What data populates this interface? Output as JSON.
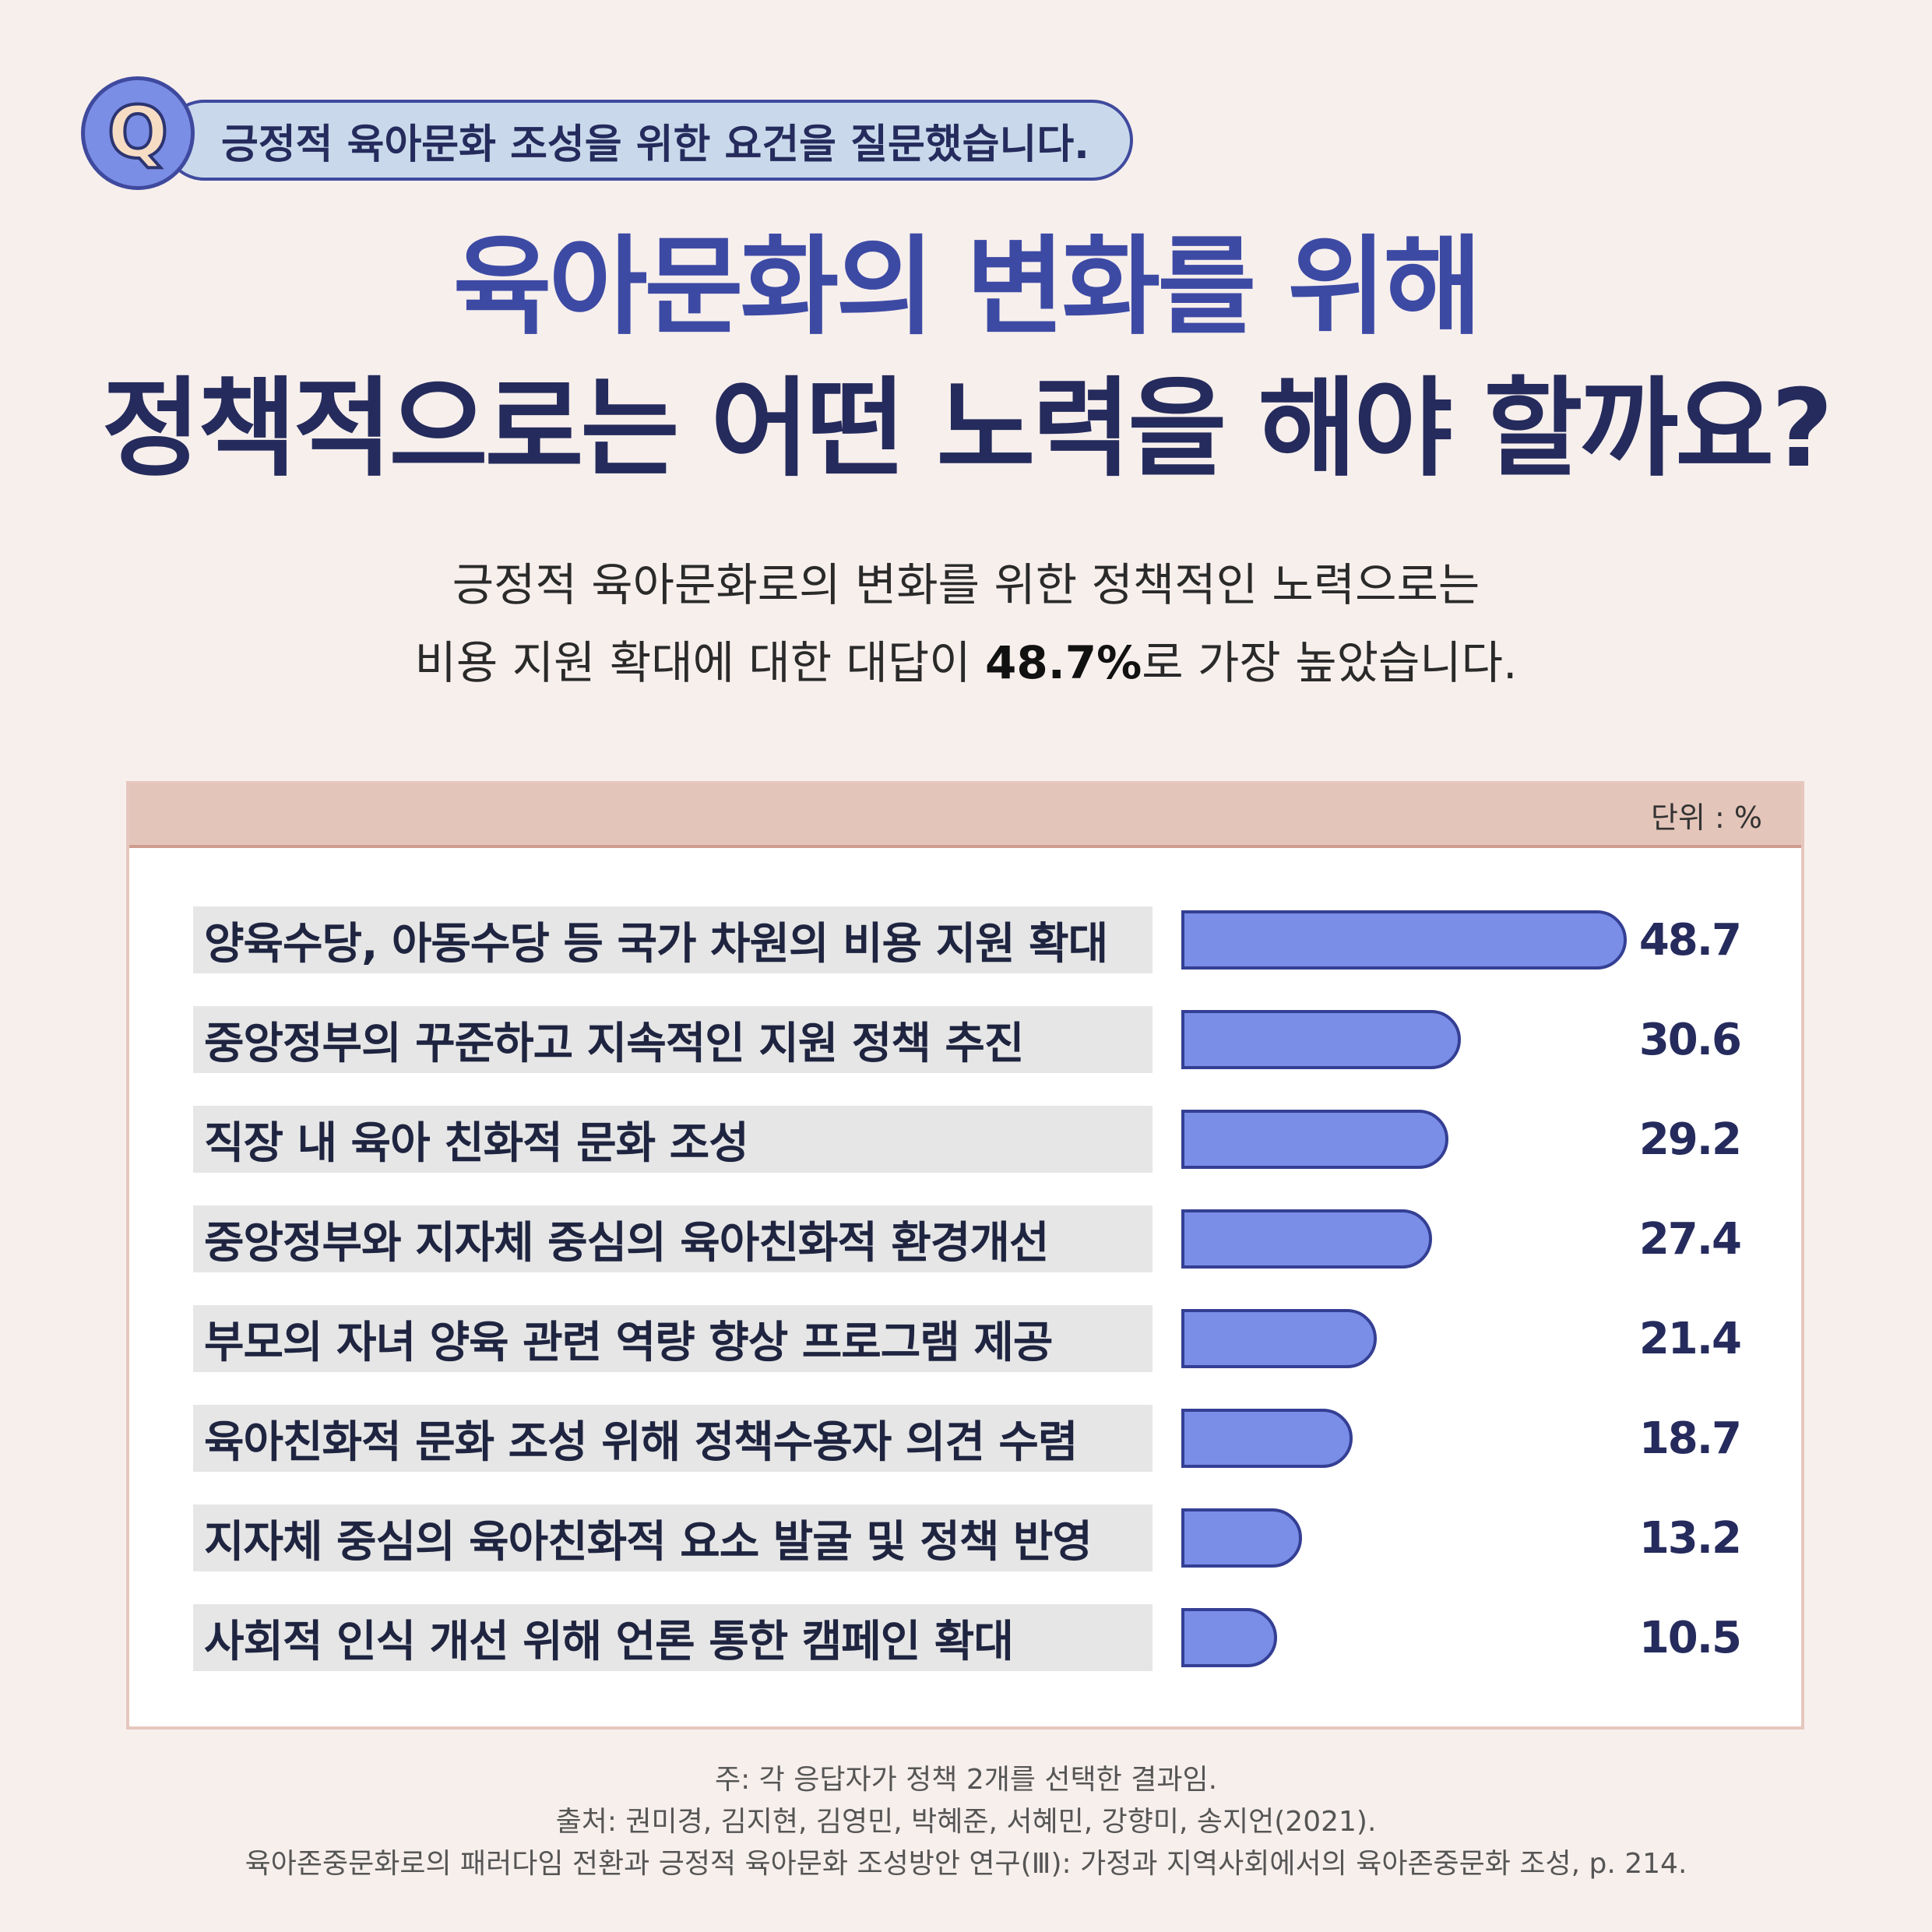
{
  "question": {
    "badge": "Q",
    "text": "긍정적 육아문화 조성을 위한 요건을 질문했습니다."
  },
  "title": {
    "line1": "육아문화의 변화를 위해",
    "line2": "정책적으로는 어떤 노력을 해야 할까요?"
  },
  "subtitle": {
    "line1": "긍정적 육아문화로의 변화를 위한 정책적인 노력으로는",
    "line2_before": "비용 지원 확대에 대한 대답이 ",
    "line2_highlight": "48.7%",
    "line2_after": "로 가장 높았습니다."
  },
  "chart_data": {
    "type": "bar",
    "orientation": "horizontal",
    "unit_label": "단위 : %",
    "categories": [
      "양육수당, 아동수당 등 국가 차원의 비용 지원 확대",
      "중앙정부의 꾸준하고 지속적인 지원 정책 추진",
      "직장 내 육아 친화적 문화 조성",
      "중앙정부와 지자체 중심의 육아친화적 환경개선",
      "부모의 자녀 양육 관련 역량 향상 프로그램 제공",
      "육아친화적 문화 조성 위해 정책수용자 의견 수렴",
      "지자체 중심의 육아친화적 요소 발굴 및 정책 반영",
      "사회적 인식 개선 위해 언론 통한 캠페인 확대"
    ],
    "values": [
      48.7,
      30.6,
      29.2,
      27.4,
      21.4,
      18.7,
      13.2,
      10.5
    ],
    "value_labels": [
      "48.7",
      "30.6",
      "29.2",
      "27.4",
      "21.4",
      "18.7",
      "13.2",
      "10.5"
    ],
    "colors": {
      "bar": "#7a8ee8",
      "bar_border": "#343f94"
    }
  },
  "footnotes": {
    "note": "주: 각 응답자가 정책 2개를 선택한 결과임.",
    "source": "출처: 권미경, 김지현, 김영민, 박혜준, 서혜민, 강향미, 송지언(2021).",
    "reference": "육아존중문화로의 패러다임 전환과 긍정적 육아문화 조성방안 연구(Ⅲ): 가정과 지역사회에서의 육아존중문화 조성, p. 214."
  },
  "colors": {
    "background": "#f7efec",
    "title_blue": "#3d4aa4",
    "title_navy": "#252b5c",
    "panel_header": "#e4c5ba"
  }
}
